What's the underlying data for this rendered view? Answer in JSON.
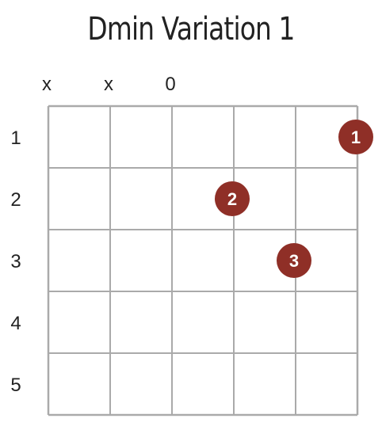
{
  "title": "Dmin Variation 1",
  "string_markers": [
    "x",
    "x",
    "0",
    "",
    "",
    ""
  ],
  "fret_labels": [
    "1",
    "2",
    "3",
    "4",
    "5"
  ],
  "fingers": [
    {
      "finger": "1",
      "string": 6,
      "fret": 1
    },
    {
      "finger": "2",
      "string": 4,
      "fret": 2
    },
    {
      "finger": "3",
      "string": 5,
      "fret": 3
    }
  ],
  "colors": {
    "dot": "#8f2f27",
    "grid": "#aaaaaa",
    "text": "#222222"
  }
}
